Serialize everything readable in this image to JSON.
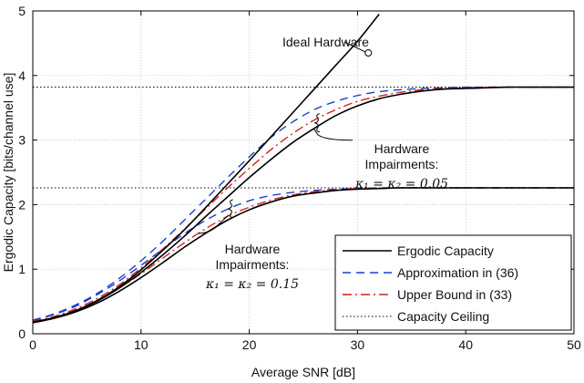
{
  "chart_data": {
    "type": "line",
    "xlabel": "Average SNR [dB]",
    "ylabel": "Ergodic Capacity [bits/channel use]",
    "xlim": [
      0,
      50
    ],
    "ylim": [
      0,
      5
    ],
    "x_ticks": [
      0,
      10,
      20,
      30,
      40,
      50
    ],
    "y_ticks": [
      0,
      1,
      2,
      3,
      4,
      5
    ],
    "grid": true,
    "legend_position": "bottom-right",
    "legend": [
      {
        "label": "Ergodic Capacity",
        "style": "solid",
        "color": "#000000"
      },
      {
        "label": "Approximation in (36)",
        "style": "dashed",
        "color": "#1a3fcc"
      },
      {
        "label": "Upper Bound in (33)",
        "style": "dashdot",
        "color": "#d62020"
      },
      {
        "label": "Capacity Ceiling",
        "style": "dotted",
        "color": "#000000"
      }
    ],
    "series": [
      {
        "name": "Ideal Hardware",
        "style": "solid",
        "color": "#000000",
        "x": [
          0,
          2,
          4,
          6,
          8,
          10,
          12,
          14,
          16,
          18,
          20,
          22,
          24,
          26,
          28,
          30,
          32
        ],
        "y": [
          0.18,
          0.25,
          0.36,
          0.52,
          0.73,
          0.99,
          1.29,
          1.61,
          1.96,
          2.32,
          2.68,
          3.05,
          3.42,
          3.79,
          4.16,
          4.53,
          4.95
        ]
      },
      {
        "name": "Ergodic Capacity",
        "style": "solid",
        "color": "#000000",
        "x": [
          0,
          2,
          4,
          6,
          8,
          10,
          12,
          14,
          16,
          18,
          20,
          22,
          24,
          26,
          28,
          30,
          32,
          34,
          36,
          38,
          40,
          42,
          44,
          46,
          48,
          50
        ],
        "y": [
          0.18,
          0.25,
          0.36,
          0.51,
          0.71,
          0.95,
          1.22,
          1.51,
          1.82,
          2.12,
          2.42,
          2.7,
          2.96,
          3.18,
          3.38,
          3.53,
          3.64,
          3.71,
          3.76,
          3.79,
          3.8,
          3.81,
          3.82,
          3.82,
          3.82,
          3.82
        ]
      },
      {
        "name": "Approximation in (36)",
        "style": "dashed",
        "color": "#1a3fcc",
        "x": [
          0,
          2,
          4,
          6,
          8,
          10,
          12,
          14,
          16,
          18,
          20,
          22,
          24,
          26,
          28,
          30,
          32,
          34,
          36,
          38,
          40,
          42,
          44,
          46,
          48,
          50
        ],
        "y": [
          0.21,
          0.31,
          0.45,
          0.63,
          0.86,
          1.13,
          1.43,
          1.76,
          2.09,
          2.42,
          2.74,
          3.04,
          3.28,
          3.47,
          3.6,
          3.69,
          3.75,
          3.78,
          3.8,
          3.81,
          3.82,
          3.82,
          3.82,
          3.82,
          3.82,
          3.82
        ]
      },
      {
        "name": "Upper Bound in (33)",
        "style": "dashdot",
        "color": "#d62020",
        "x": [
          0,
          2,
          4,
          6,
          8,
          10,
          12,
          14,
          16,
          18,
          20,
          22,
          24,
          26,
          28,
          30,
          32,
          34,
          36,
          38,
          40,
          42,
          44,
          46,
          48,
          50
        ],
        "y": [
          0.19,
          0.27,
          0.39,
          0.55,
          0.76,
          1.02,
          1.31,
          1.62,
          1.94,
          2.26,
          2.56,
          2.85,
          3.1,
          3.31,
          3.47,
          3.6,
          3.68,
          3.74,
          3.78,
          3.8,
          3.81,
          3.82,
          3.82,
          3.82,
          3.82,
          3.82
        ]
      },
      {
        "name": "Ergodic Capacity (κ=0.15)",
        "style": "solid",
        "color": "#000000",
        "x": [
          0,
          2,
          4,
          6,
          8,
          10,
          12,
          14,
          16,
          18,
          20,
          22,
          24,
          26,
          28,
          30,
          32,
          34,
          36,
          38,
          40,
          42,
          44,
          46,
          48,
          50
        ],
        "y": [
          0.17,
          0.24,
          0.34,
          0.48,
          0.66,
          0.87,
          1.1,
          1.34,
          1.56,
          1.76,
          1.92,
          2.04,
          2.13,
          2.18,
          2.22,
          2.24,
          2.25,
          2.26,
          2.26,
          2.26,
          2.26,
          2.26,
          2.26,
          2.26,
          2.26,
          2.26
        ]
      },
      {
        "name": "Approximation in (36) (κ=0.15)",
        "style": "dashed",
        "color": "#1a3fcc",
        "x": [
          0,
          2,
          4,
          6,
          8,
          10,
          12,
          14,
          16,
          18,
          20,
          22,
          24,
          26,
          28,
          30,
          32,
          34,
          36,
          38,
          40,
          42,
          44,
          46,
          48,
          50
        ],
        "y": [
          0.2,
          0.3,
          0.43,
          0.61,
          0.82,
          1.06,
          1.31,
          1.55,
          1.76,
          1.93,
          2.06,
          2.14,
          2.19,
          2.22,
          2.24,
          2.25,
          2.26,
          2.26,
          2.26,
          2.26,
          2.26,
          2.26,
          2.26,
          2.26,
          2.26,
          2.26
        ]
      },
      {
        "name": "Upper Bound in (33) (κ=0.15)",
        "style": "dashdot",
        "color": "#d62020",
        "x": [
          0,
          2,
          4,
          6,
          8,
          10,
          12,
          14,
          16,
          18,
          20,
          22,
          24,
          26,
          28,
          30,
          32,
          34,
          36,
          38,
          40,
          42,
          44,
          46,
          48,
          50
        ],
        "y": [
          0.18,
          0.26,
          0.37,
          0.52,
          0.71,
          0.93,
          1.17,
          1.41,
          1.63,
          1.82,
          1.96,
          2.07,
          2.15,
          2.2,
          2.23,
          2.25,
          2.25,
          2.26,
          2.26,
          2.26,
          2.26,
          2.26,
          2.26,
          2.26,
          2.26,
          2.26
        ]
      }
    ],
    "ceilings": [
      3.82,
      2.26
    ],
    "annotations": {
      "ideal_label": "Ideal Hardware",
      "ideal_marker": {
        "x": 31,
        "y": 4.35
      },
      "impair_005": {
        "line1": "Hardware",
        "line2": "Impairments:",
        "line3": "κ₁ = κ₂ = 0.05",
        "brace_at": {
          "x": 26.5,
          "y": 3.28
        }
      },
      "impair_015": {
        "line1": "Hardware",
        "line2": "Impairments:",
        "line3": "κ₁ = κ₂ = 0.15",
        "brace_at": {
          "x": 18.5,
          "y": 1.95
        }
      }
    }
  }
}
